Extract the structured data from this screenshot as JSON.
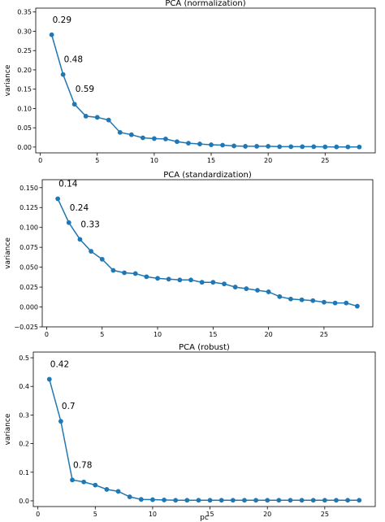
{
  "chart_data": [
    {
      "type": "line",
      "title": "PCA (normalization)",
      "xlabel": "",
      "ylabel": "variance",
      "xlim": [
        -0.4,
        29.4
      ],
      "ylim": [
        -0.015,
        0.36
      ],
      "xticks": [
        0,
        5,
        10,
        15,
        20,
        25
      ],
      "yticks": [
        0.0,
        0.05,
        0.1,
        0.15,
        0.2,
        0.25,
        0.3,
        0.35
      ],
      "ytick_labels": [
        "0.00",
        "0.05",
        "0.10",
        "0.15",
        "0.20",
        "0.25",
        "0.30",
        "0.35"
      ],
      "color": "#1f77b4",
      "x": [
        1,
        2,
        3,
        4,
        5,
        6,
        7,
        8,
        9,
        10,
        11,
        12,
        13,
        14,
        15,
        16,
        17,
        18,
        19,
        20,
        21,
        22,
        23,
        24,
        25,
        26,
        27,
        28
      ],
      "values": [
        0.291,
        0.188,
        0.111,
        0.08,
        0.077,
        0.07,
        0.038,
        0.032,
        0.024,
        0.022,
        0.021,
        0.014,
        0.01,
        0.008,
        0.006,
        0.005,
        0.003,
        0.002,
        0.002,
        0.002,
        0.001,
        0.001,
        0.001,
        0.001,
        0.0005,
        0.0004,
        0.0003,
        0.0002
      ],
      "annotations": [
        {
          "x": 1,
          "y": 0.291,
          "text": "0.29"
        },
        {
          "x": 2,
          "y": 0.188,
          "text": "0.48"
        },
        {
          "x": 3,
          "y": 0.111,
          "text": "0.59"
        }
      ]
    },
    {
      "type": "line",
      "title": "PCA (standardization)",
      "xlabel": "",
      "ylabel": "variance",
      "xlim": [
        -0.4,
        29.4
      ],
      "ylim": [
        -0.025,
        0.16
      ],
      "xticks": [
        0,
        5,
        10,
        15,
        20,
        25
      ],
      "yticks": [
        -0.025,
        0.0,
        0.025,
        0.05,
        0.075,
        0.1,
        0.125,
        0.15
      ],
      "ytick_labels": [
        "−0.025",
        "0.000",
        "0.025",
        "0.050",
        "0.075",
        "0.100",
        "0.125",
        "0.150"
      ],
      "color": "#1f77b4",
      "x": [
        1,
        2,
        3,
        4,
        5,
        6,
        7,
        8,
        9,
        10,
        11,
        12,
        13,
        14,
        15,
        16,
        17,
        18,
        19,
        20,
        21,
        22,
        23,
        24,
        25,
        26,
        27,
        28
      ],
      "values": [
        0.136,
        0.106,
        0.085,
        0.07,
        0.06,
        0.046,
        0.043,
        0.042,
        0.038,
        0.036,
        0.035,
        0.034,
        0.034,
        0.031,
        0.031,
        0.029,
        0.025,
        0.023,
        0.021,
        0.019,
        0.013,
        0.01,
        0.009,
        0.008,
        0.006,
        0.005,
        0.005,
        0.001
      ],
      "annotations": [
        {
          "x": 1,
          "y": 0.136,
          "text": "0.14"
        },
        {
          "x": 2,
          "y": 0.106,
          "text": "0.24"
        },
        {
          "x": 3,
          "y": 0.085,
          "text": "0.33"
        }
      ]
    },
    {
      "type": "line",
      "title": "PCA (robust)",
      "xlabel": "pc",
      "ylabel": "variance",
      "xlim": [
        -0.4,
        29.4
      ],
      "ylim": [
        -0.02,
        0.52
      ],
      "xticks": [
        0,
        5,
        10,
        15,
        20,
        25
      ],
      "yticks": [
        0.0,
        0.1,
        0.2,
        0.3,
        0.4,
        0.5
      ],
      "ytick_labels": [
        "0.0",
        "0.1",
        "0.2",
        "0.3",
        "0.4",
        "0.5"
      ],
      "color": "#1f77b4",
      "x": [
        1,
        2,
        3,
        4,
        5,
        6,
        7,
        8,
        9,
        10,
        11,
        12,
        13,
        14,
        15,
        16,
        17,
        18,
        19,
        20,
        21,
        22,
        23,
        24,
        25,
        26,
        27,
        28
      ],
      "values": [
        0.425,
        0.278,
        0.073,
        0.066,
        0.055,
        0.04,
        0.033,
        0.014,
        0.005,
        0.004,
        0.003,
        0.002,
        0.002,
        0.002,
        0.002,
        0.002,
        0.002,
        0.002,
        0.002,
        0.002,
        0.002,
        0.002,
        0.002,
        0.002,
        0.002,
        0.002,
        0.002,
        0.002
      ],
      "annotations": [
        {
          "x": 1,
          "y": 0.425,
          "text": "0.42"
        },
        {
          "x": 2,
          "y": 0.278,
          "text": "0.7"
        },
        {
          "x": 3,
          "y": 0.073,
          "text": "0.78"
        }
      ]
    }
  ]
}
